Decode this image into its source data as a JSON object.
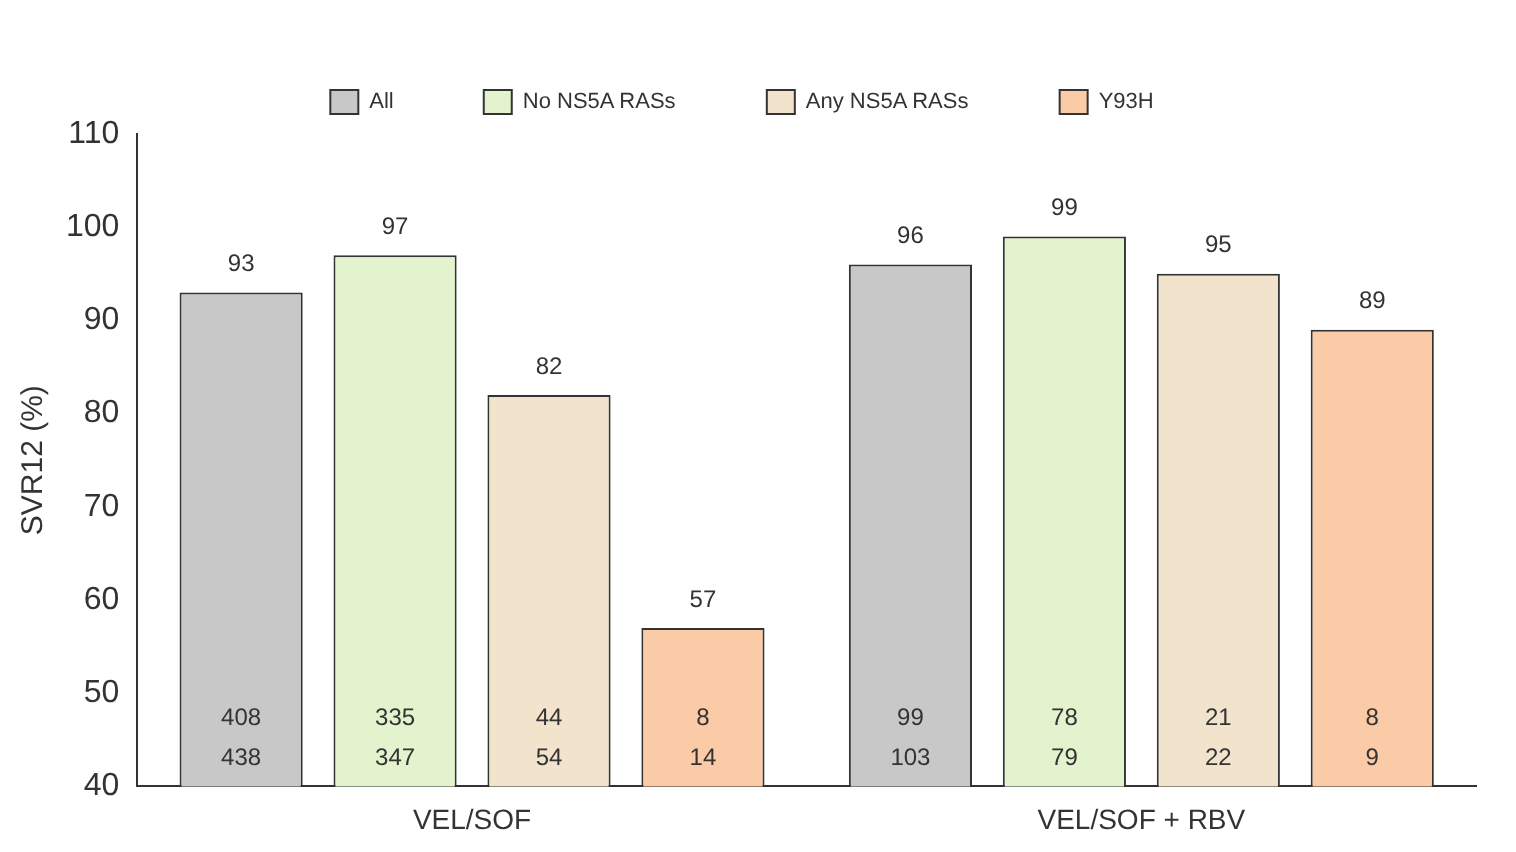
{
  "chart_data": {
    "type": "bar",
    "ylabel": "SVR12 (%)",
    "categories": [
      "VEL/SOF",
      "VEL/SOF + RBV"
    ],
    "series": [
      {
        "name": "All",
        "color": "#c8c8c8",
        "values": [
          93,
          96
        ]
      },
      {
        "name": "No NS5A RASs",
        "color": "#e3f3cd",
        "values": [
          97,
          99
        ]
      },
      {
        "name": "Any NS5A RASs",
        "color": "#f2e3cd",
        "values": [
          82,
          95
        ]
      },
      {
        "name": "Y93H",
        "color": "#fbcaa6",
        "values": [
          57,
          89
        ]
      }
    ],
    "ylim": [
      40,
      110
    ],
    "yticks": [
      40,
      50,
      60,
      70,
      80,
      90,
      100,
      110
    ],
    "grid": false,
    "legend": "top",
    "data_labels": true,
    "annotations": [
      "408\n438",
      "335\n347",
      "44\n54",
      "8\n14",
      "99\n103",
      "78\n79",
      "21\n22",
      "8\n9"
    ]
  }
}
